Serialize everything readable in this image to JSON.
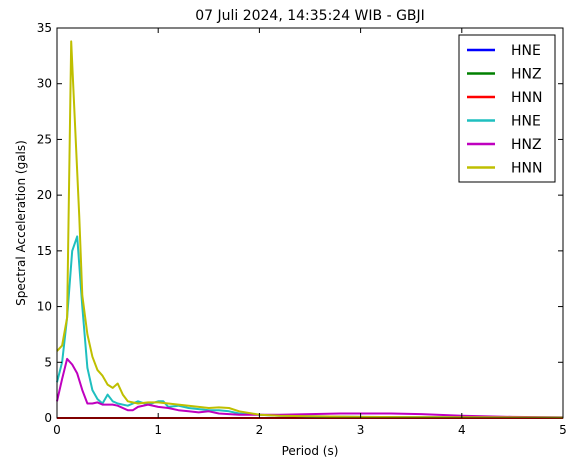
{
  "chart_data": {
    "type": "line",
    "title": "07 Juli 2024, 14:35:24 WIB - GBJI",
    "xlabel": "Period (s)",
    "ylabel": "Spectral Acceleration (gals)",
    "xlim": [
      0,
      5
    ],
    "ylim": [
      0,
      35
    ],
    "xticks": [
      "0",
      "1",
      "2",
      "3",
      "4",
      "5"
    ],
    "yticks": [
      "0",
      "5",
      "10",
      "15",
      "20",
      "25",
      "30",
      "35"
    ],
    "grid": false,
    "legend_position": "top-right",
    "series": [
      {
        "name": "HNE",
        "color": "#0000ff",
        "x": [
          0,
          5
        ],
        "y": [
          0,
          0
        ]
      },
      {
        "name": "HNZ",
        "color": "#008000",
        "x": [
          0,
          5
        ],
        "y": [
          0,
          0
        ]
      },
      {
        "name": "HNN",
        "color": "#ff0000",
        "x": [
          0,
          5
        ],
        "y": [
          0,
          0
        ]
      },
      {
        "name": "HNE",
        "color": "#1fbfbf",
        "x": [
          0,
          0.05,
          0.1,
          0.15,
          0.2,
          0.25,
          0.3,
          0.35,
          0.4,
          0.45,
          0.5,
          0.55,
          0.6,
          0.7,
          0.8,
          0.9,
          1.0,
          1.05,
          1.1,
          1.2,
          1.3,
          1.4,
          1.5,
          1.6,
          1.7,
          1.8,
          2.0,
          2.2,
          2.5,
          3.0,
          3.5,
          4.0,
          4.5,
          5.0
        ],
        "y": [
          3.2,
          5.0,
          9.0,
          15.0,
          16.3,
          10.0,
          4.5,
          2.5,
          1.7,
          1.3,
          2.1,
          1.5,
          1.3,
          1.1,
          1.5,
          1.2,
          1.5,
          1.5,
          1.0,
          1.1,
          0.9,
          0.8,
          0.7,
          0.7,
          0.6,
          0.4,
          0.3,
          0.2,
          0.15,
          0.1,
          0.08,
          0.07,
          0.06,
          0.05
        ]
      },
      {
        "name": "HNZ",
        "color": "#bf00bf",
        "x": [
          0,
          0.05,
          0.1,
          0.15,
          0.2,
          0.25,
          0.3,
          0.35,
          0.4,
          0.45,
          0.5,
          0.55,
          0.6,
          0.7,
          0.75,
          0.8,
          0.9,
          1.0,
          1.1,
          1.2,
          1.3,
          1.4,
          1.5,
          1.6,
          1.7,
          1.8,
          2.0,
          2.2,
          2.5,
          2.8,
          3.0,
          3.3,
          3.6,
          4.0,
          4.5,
          5.0
        ],
        "y": [
          1.5,
          3.5,
          5.3,
          4.8,
          4.0,
          2.5,
          1.3,
          1.3,
          1.4,
          1.2,
          1.2,
          1.2,
          1.1,
          0.7,
          0.7,
          1.0,
          1.2,
          1.0,
          0.9,
          0.7,
          0.6,
          0.5,
          0.6,
          0.4,
          0.35,
          0.3,
          0.3,
          0.3,
          0.35,
          0.4,
          0.4,
          0.4,
          0.35,
          0.2,
          0.1,
          0.05
        ]
      },
      {
        "name": "HNN",
        "color": "#bfbf00",
        "x": [
          0,
          0.05,
          0.1,
          0.14,
          0.18,
          0.22,
          0.25,
          0.3,
          0.35,
          0.4,
          0.45,
          0.5,
          0.55,
          0.6,
          0.65,
          0.7,
          0.8,
          0.9,
          1.0,
          1.1,
          1.2,
          1.3,
          1.4,
          1.5,
          1.6,
          1.7,
          1.8,
          2.0,
          2.2,
          2.5,
          3.0,
          3.5,
          4.0,
          4.5,
          5.0
        ],
        "y": [
          6.0,
          6.5,
          9.0,
          33.8,
          26.0,
          18.0,
          11.0,
          7.5,
          5.5,
          4.3,
          3.8,
          3.0,
          2.7,
          3.1,
          2.1,
          1.5,
          1.3,
          1.4,
          1.4,
          1.3,
          1.2,
          1.1,
          1.0,
          0.9,
          0.95,
          0.9,
          0.6,
          0.3,
          0.2,
          0.15,
          0.1,
          0.08,
          0.06,
          0.05,
          0.04
        ]
      }
    ]
  }
}
